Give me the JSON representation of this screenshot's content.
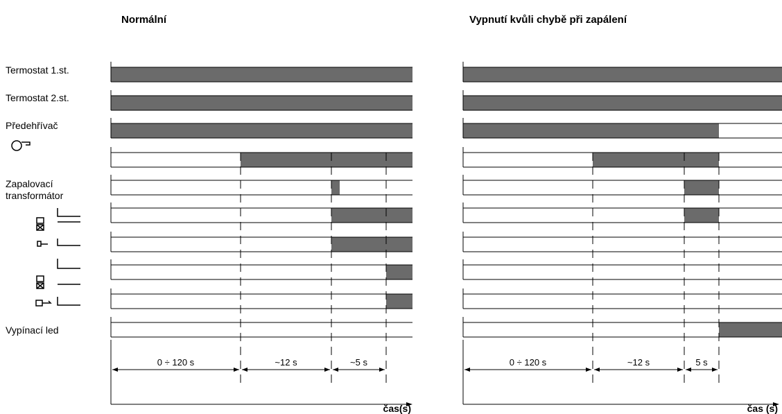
{
  "row_labels": {
    "thermostat_1": "Termostat 1.st.",
    "thermostat_2": "Termostat 2.st.",
    "preheater": "Předehřívač",
    "ignition_1": "Zapalovací",
    "ignition_2": "transformátor",
    "lockout": "Vypínací led"
  },
  "left": {
    "title": "Normální",
    "intervals": [
      "0 ÷ 120 s",
      "~12 s",
      "~5 s"
    ],
    "axis_label": "čas(s)"
  },
  "right": {
    "title": "Vypnutí kvůli chybě při zapálení",
    "intervals": [
      "0 ÷ 120 s",
      "~12 s",
      "5 s"
    ],
    "axis_label": "čas (s)"
  }
}
